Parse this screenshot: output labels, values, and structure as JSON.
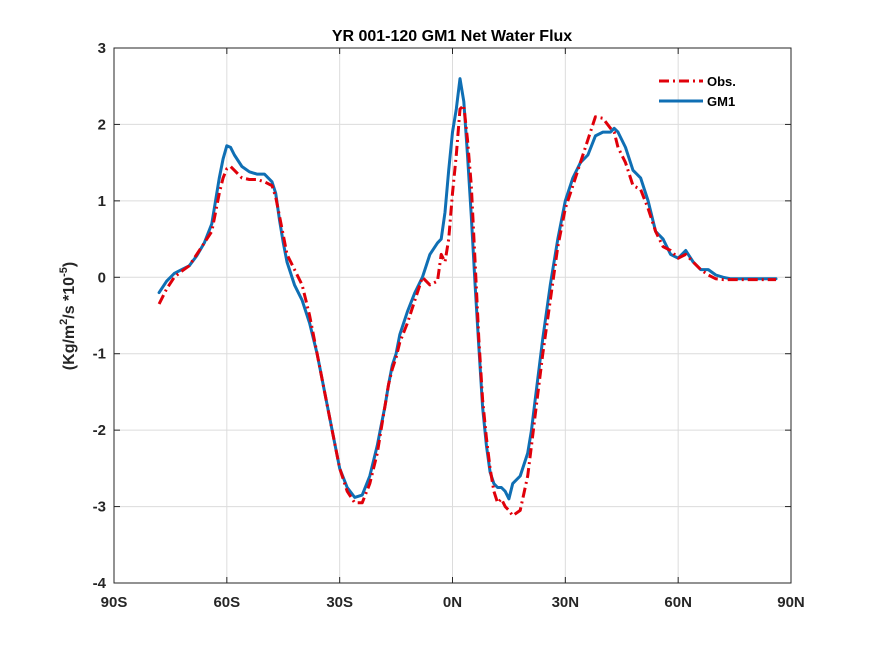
{
  "chart_data": {
    "type": "line",
    "title": "YR 001-120 GM1  Net Water Flux",
    "xlabel": "",
    "ylabel_base": "(Kg/m",
    "ylabel_sup1": "2",
    "ylabel_mid": "/s *10",
    "ylabel_sup2": "-5",
    "ylabel_end": ")",
    "xlim": [
      -90,
      90
    ],
    "ylim": [
      -4,
      3
    ],
    "xticks": [
      -90,
      -60,
      -30,
      0,
      30,
      60,
      90
    ],
    "xtick_labels": [
      "90S",
      "60S",
      "30S",
      "0N",
      "30N",
      "60N",
      "90N"
    ],
    "yticks": [
      -4,
      -3,
      -2,
      -1,
      0,
      1,
      2,
      3
    ],
    "ytick_labels": [
      "-4",
      "-3",
      "-2",
      "-1",
      "0",
      "1",
      "2",
      "3"
    ],
    "grid": true,
    "legend_position": "top-right",
    "series": [
      {
        "name": "Obs.",
        "color": "#e0000a",
        "style": "dash-dot",
        "x": [
          -78,
          -76,
          -74,
          -72,
          -70,
          -68,
          -66,
          -64,
          -62,
          -61,
          -60,
          -59,
          -58,
          -56,
          -54,
          -52,
          -50,
          -48,
          -47,
          -46,
          -45,
          -44,
          -42,
          -40,
          -38,
          -36,
          -34,
          -32,
          -30,
          -28,
          -26,
          -24,
          -22,
          -20,
          -19,
          -18,
          -17,
          -16,
          -15,
          -14,
          -12,
          -10,
          -8,
          -6,
          -4,
          -3,
          -2,
          -1,
          0,
          1,
          2,
          3,
          4,
          5,
          6,
          7,
          8,
          9,
          10,
          11,
          12,
          13,
          14,
          15,
          16,
          18,
          20,
          21,
          22,
          23,
          24,
          26,
          28,
          30,
          32,
          34,
          36,
          38,
          40,
          42,
          43,
          44,
          46,
          48,
          50,
          52,
          54,
          56,
          58,
          60,
          62,
          64,
          66,
          68,
          70,
          72,
          74,
          76,
          78,
          80,
          82,
          84,
          86
        ],
        "y": [
          -0.35,
          -0.15,
          0.0,
          0.08,
          0.15,
          0.3,
          0.45,
          0.6,
          1.1,
          1.3,
          1.42,
          1.45,
          1.4,
          1.3,
          1.28,
          1.28,
          1.25,
          1.2,
          1.05,
          0.8,
          0.55,
          0.3,
          0.1,
          -0.1,
          -0.5,
          -1.0,
          -1.5,
          -2.0,
          -2.5,
          -2.8,
          -2.95,
          -2.95,
          -2.7,
          -2.3,
          -2.0,
          -1.7,
          -1.4,
          -1.2,
          -1.05,
          -0.85,
          -0.6,
          -0.3,
          0.0,
          -0.1,
          -0.05,
          0.3,
          0.2,
          0.5,
          1.1,
          1.6,
          2.2,
          2.25,
          1.8,
          1.2,
          0.2,
          -0.8,
          -1.6,
          -2.1,
          -2.5,
          -2.8,
          -2.95,
          -2.9,
          -3.0,
          -3.05,
          -3.12,
          -3.05,
          -2.6,
          -2.2,
          -1.8,
          -1.4,
          -1.0,
          -0.3,
          0.4,
          0.9,
          1.2,
          1.5,
          1.8,
          2.1,
          2.08,
          1.95,
          1.9,
          1.7,
          1.5,
          1.2,
          1.15,
          0.9,
          0.6,
          0.4,
          0.35,
          0.25,
          0.3,
          0.2,
          0.1,
          0.03,
          -0.02,
          -0.03,
          -0.03,
          -0.03,
          -0.03,
          -0.03,
          -0.03,
          -0.03,
          -0.03
        ]
      },
      {
        "name": "GM1",
        "color": "#0f6fb4",
        "style": "solid",
        "x": [
          -78,
          -76,
          -74,
          -72,
          -70,
          -68,
          -66,
          -64,
          -62,
          -61,
          -60,
          -59,
          -58,
          -56,
          -54,
          -52,
          -50,
          -48,
          -47,
          -46,
          -45,
          -44,
          -42,
          -40,
          -38,
          -36,
          -34,
          -32,
          -30,
          -28,
          -26,
          -24,
          -22,
          -20,
          -19,
          -18,
          -17,
          -16,
          -15,
          -14,
          -12,
          -10,
          -8,
          -6,
          -4,
          -3,
          -2,
          -1,
          0,
          1,
          2,
          3,
          4,
          5,
          6,
          7,
          8,
          9,
          10,
          11,
          12,
          13,
          14,
          15,
          16,
          18,
          20,
          21,
          22,
          23,
          24,
          26,
          28,
          30,
          32,
          34,
          36,
          38,
          40,
          42,
          43,
          44,
          46,
          48,
          50,
          52,
          54,
          56,
          58,
          60,
          62,
          64,
          66,
          68,
          70,
          72,
          74,
          76,
          78,
          80,
          82,
          84,
          86
        ],
        "y": [
          -0.2,
          -0.05,
          0.05,
          0.1,
          0.15,
          0.28,
          0.45,
          0.7,
          1.3,
          1.55,
          1.72,
          1.7,
          1.6,
          1.45,
          1.38,
          1.35,
          1.35,
          1.25,
          1.1,
          0.75,
          0.45,
          0.2,
          -0.1,
          -0.3,
          -0.6,
          -1.0,
          -1.5,
          -2.0,
          -2.5,
          -2.75,
          -2.88,
          -2.85,
          -2.6,
          -2.2,
          -1.95,
          -1.7,
          -1.4,
          -1.15,
          -1.0,
          -0.75,
          -0.45,
          -0.2,
          0.0,
          0.3,
          0.45,
          0.5,
          0.85,
          1.4,
          1.9,
          2.2,
          2.6,
          2.3,
          1.6,
          0.8,
          -0.1,
          -0.9,
          -1.7,
          -2.2,
          -2.55,
          -2.7,
          -2.75,
          -2.75,
          -2.8,
          -2.9,
          -2.7,
          -2.6,
          -2.3,
          -2.0,
          -1.6,
          -1.2,
          -0.8,
          -0.1,
          0.5,
          1.0,
          1.3,
          1.5,
          1.6,
          1.85,
          1.9,
          1.9,
          1.95,
          1.9,
          1.7,
          1.4,
          1.3,
          1.0,
          0.6,
          0.5,
          0.3,
          0.25,
          0.35,
          0.2,
          0.1,
          0.1,
          0.03,
          0.0,
          -0.02,
          -0.02,
          -0.02,
          -0.02,
          -0.02,
          -0.02,
          -0.02
        ]
      }
    ]
  }
}
